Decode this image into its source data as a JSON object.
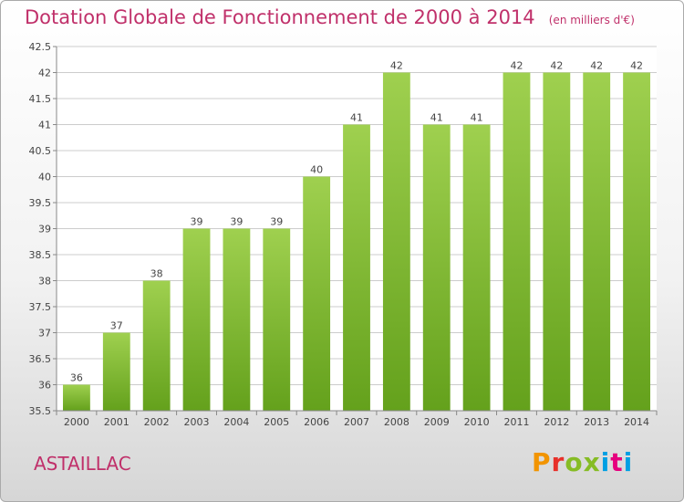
{
  "title": "Dotation Globale de Fonctionnement de 2000 à 2014",
  "subtitle": "(en milliers d'€)",
  "commune": "ASTAILLAC",
  "logo": {
    "text": "Proxiti",
    "colors": [
      "#f29400",
      "#e7302a",
      "#86bc25",
      "#009fe3",
      "#e6007e"
    ]
  },
  "colors": {
    "title": "#c0306a",
    "bar_light": "#9fd04f",
    "bar_dark": "#64a11c",
    "grid": "#cccccc"
  },
  "chart_data": {
    "type": "bar",
    "title": "Dotation Globale de Fonctionnement de 2000 à 2014",
    "subtitle": "(en milliers d'€)",
    "xlabel": "",
    "ylabel": "",
    "categories": [
      "2000",
      "2001",
      "2002",
      "2003",
      "2004",
      "2005",
      "2006",
      "2007",
      "2008",
      "2009",
      "2010",
      "2011",
      "2012",
      "2013",
      "2014"
    ],
    "values": [
      36,
      37,
      38,
      39,
      39,
      39,
      40,
      41,
      42,
      41,
      41,
      42,
      42,
      42,
      42
    ],
    "ylim": [
      35.5,
      42.5
    ],
    "yticks": [
      "35.5",
      "36",
      "36.5",
      "37",
      "37.5",
      "38",
      "38.5",
      "39",
      "39.5",
      "40",
      "40.5",
      "41",
      "41.5",
      "42",
      "42.5"
    ],
    "grid": true,
    "legend": "none"
  }
}
